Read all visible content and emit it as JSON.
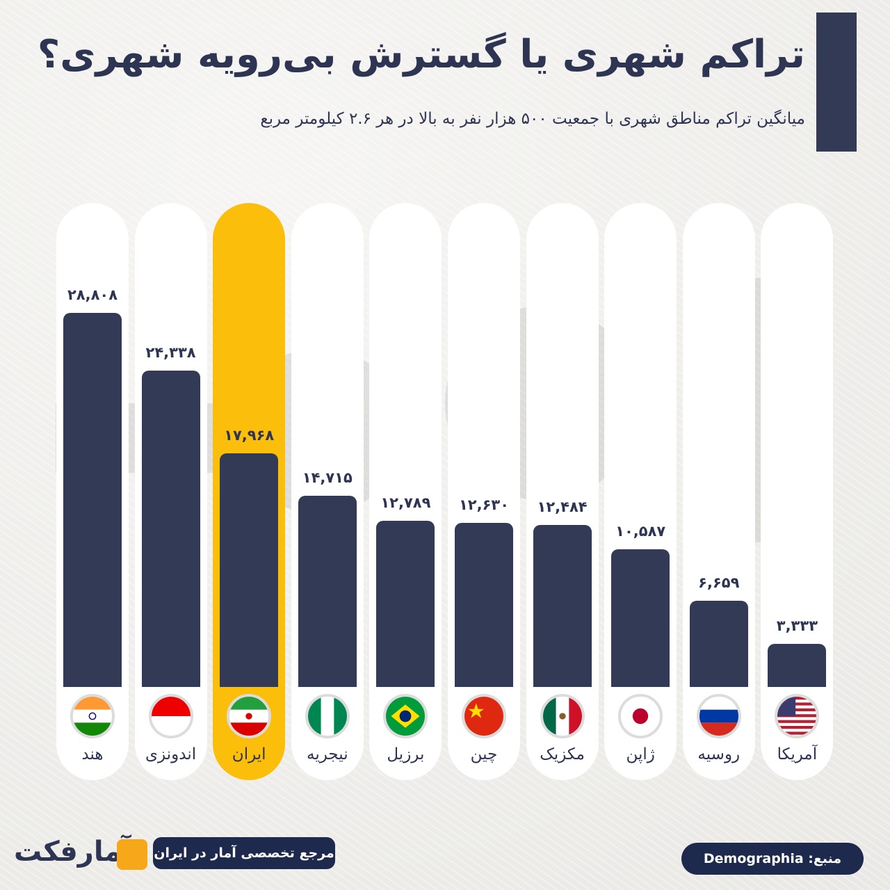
{
  "header": {
    "title": "تراکم شهری یا گسترش بی‌رویه شهری؟",
    "subtitle": "میانگین تراکم مناطق شهری با جمعیت ۵۰۰ هزار نفر به بالا در هر ۲.۶ کیلومتر مربع"
  },
  "footer": {
    "source": "منبع: Demographia",
    "tagline": "مرجع تخصصی آمار در ایران",
    "logo": "آمارفکت"
  },
  "colors": {
    "bar": "#323a56",
    "highlight": "#fbbf0b",
    "column": "#ffffff",
    "text": "#2d3553"
  },
  "chart_data": {
    "type": "bar",
    "title": "تراکم شهری یا گسترش بی‌رویه شهری؟",
    "subtitle": "میانگین تراکم مناطق شهری با جمعیت ۵۰۰ هزار نفر به بالا در هر ۲.۶ کیلومتر مربع",
    "categories": [
      "هند",
      "اندونزی",
      "ایران",
      "نیجریه",
      "برزیل",
      "چین",
      "مکزیک",
      "ژاپن",
      "روسیه",
      "آمریکا"
    ],
    "values": [
      28808,
      24338,
      17968,
      14715,
      12789,
      12630,
      12484,
      10587,
      6659,
      3333
    ],
    "value_labels": [
      "۲۸,۸۰۸",
      "۲۴,۳۳۸",
      "۱۷,۹۶۸",
      "۱۴,۷۱۵",
      "۱۲,۷۸۹",
      "۱۲,۶۳۰",
      "۱۲,۴۸۴",
      "۱۰,۵۸۷",
      "۶,۶۵۹",
      "۳,۳۳۳"
    ],
    "flags": [
      "india",
      "indonesia",
      "iran",
      "nigeria",
      "brazil",
      "china",
      "mexico",
      "japan",
      "russia",
      "usa"
    ],
    "highlight": "ایران",
    "grid": false,
    "legend": "none"
  }
}
